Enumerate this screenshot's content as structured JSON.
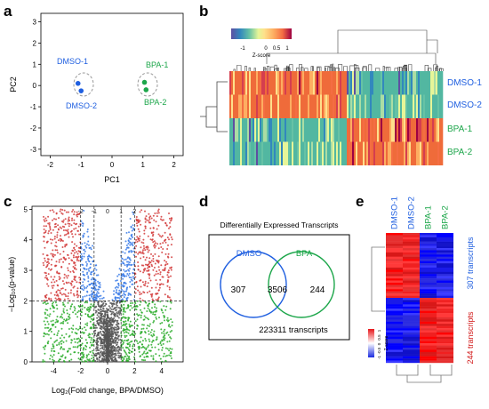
{
  "panels": {
    "a": "a",
    "b": "b",
    "c": "c",
    "d": "d",
    "e": "e"
  },
  "colors": {
    "dmso": "#1f5fe0",
    "bpa": "#1ca64a",
    "up": "#d23a3a",
    "sig": "#3a7be8",
    "fc": "#2aab2a",
    "ns": "#555555",
    "teal": "#52b7a1",
    "orange": "#ef6b3a",
    "red": "#e8161a",
    "blue": "#1a2be0"
  },
  "chart_data": [
    {
      "type": "scatter",
      "panel": "a",
      "xlabel": "PC1",
      "ylabel": "PC2",
      "xlim": [
        -2.3,
        2.3
      ],
      "ylim": [
        -3.3,
        3.4
      ],
      "xticks": [
        "-2",
        "-1",
        "0",
        "1",
        "2"
      ],
      "yticks": [
        "3",
        "2",
        "1",
        "0",
        "-1",
        "-2",
        "-3"
      ],
      "xtick_vals": [
        -2,
        -1,
        0,
        1,
        2
      ],
      "ytick_vals": [
        3,
        2,
        1,
        0,
        -1,
        -2,
        -3
      ],
      "points": [
        {
          "name": "DMSO-1",
          "x": -1.1,
          "y": 0.1
        },
        {
          "name": "DMSO-2",
          "x": -1.0,
          "y": -0.25
        },
        {
          "name": "BPA-1",
          "x": 1.05,
          "y": 0.15
        },
        {
          "name": "BPA-2",
          "x": 1.1,
          "y": -0.2
        }
      ]
    },
    {
      "type": "heatmap",
      "panel": "b",
      "rows": [
        "DMSO-1",
        "DMSO-2",
        "BPA-1",
        "BPA-2"
      ],
      "legend_ticks": [
        "-1",
        "0",
        "0.5",
        "1"
      ],
      "legend_title": "Z-score"
    },
    {
      "type": "scatter",
      "panel": "c",
      "xlabel": "Log₂(Fold change, BPA/DMSO)",
      "ylabel": "−Log₁₀(p-value)",
      "xticks": [
        "-4",
        "-2",
        "0",
        "2",
        "4"
      ],
      "xtick_vals": [
        -4,
        -2,
        0,
        2,
        4
      ],
      "xlim": [
        -5.6,
        5.6
      ],
      "ylim": [
        0,
        5.1
      ],
      "yticks": [
        "5",
        "4",
        "3",
        "2",
        "1",
        "0"
      ],
      "ytick_vals": [
        5,
        4,
        3,
        2,
        1,
        0
      ],
      "thresholds": {
        "x": [
          -2,
          -1,
          1,
          2
        ],
        "y": 2
      },
      "top_labels": [
        "-2",
        "-1",
        "0",
        "1",
        "2"
      ],
      "top_label_vals": [
        -2,
        -1,
        0,
        1,
        2
      ]
    },
    {
      "type": "venn",
      "panel": "d",
      "title": "Differentially Expressed Transcripts",
      "sets": [
        {
          "name": "DMSO",
          "only": 307
        },
        {
          "name": "BPA",
          "only": 244
        }
      ],
      "overlap": 3506,
      "total": "223311 transcripts"
    },
    {
      "type": "heatmap",
      "panel": "e",
      "columns": [
        "DMSO-1",
        "DMSO-2",
        "BPA-1",
        "BPA-2"
      ],
      "row_groups": [
        "307 transcripts",
        "244 transcripts"
      ],
      "legend_ticks": [
        "1",
        "0.5",
        "0",
        "-0.5",
        "-1"
      ],
      "legend_title": "Z-score"
    }
  ]
}
